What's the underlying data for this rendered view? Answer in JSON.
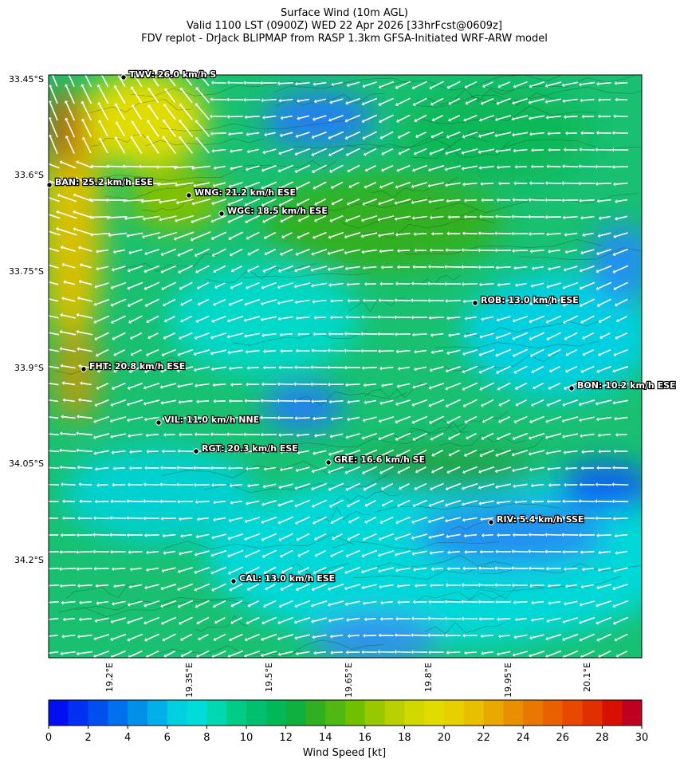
{
  "header": {
    "title": "Surface Wind (10m AGL)",
    "subtitle": "Valid 1100 LST (0900Z) WED 22 Apr 2026 [33hrFcst@0609z]",
    "credit": "FDV replot - DrJack BLIPMAP from RASP 1.3km GFSA-Initiated WRF-ARW model"
  },
  "map": {
    "lat_labels": [
      "33.45°S",
      "33.6°S",
      "33.75°S",
      "33.9°S",
      "34.05°S",
      "34.2°S"
    ],
    "lon_labels": [
      "19.2°E",
      "19.35°E",
      "19.5°E",
      "19.65°E",
      "19.8°E",
      "19.95°E",
      "20.1°E"
    ],
    "stations": [
      "TWV: 26.0 km/h S",
      "BAN: 25.2 km/h ESE",
      "WNG: 21.2 km/h ESE",
      "WGC: 18.5 km/h ESE",
      "ROB: 13.0 km/h ESE",
      "FHT: 20.8 km/h ESE",
      "BON: 10.2 km/h ESE",
      "VIL: 11.0 km/h NNE",
      "RGT: 20.3 km/h ESE",
      "GRE: 16.6 km/h SE",
      "RIV: 5.4 km/h SSE",
      "CAL: 13.0 km/h ESE"
    ]
  },
  "colorbar": {
    "label": "Wind Speed [kt]",
    "lim": [
      0,
      30
    ],
    "ticks": [
      0,
      2,
      4,
      6,
      8,
      10,
      12,
      14,
      16,
      18,
      20,
      22,
      24,
      26,
      28,
      30
    ],
    "colors": [
      "#0010f0",
      "#0030f0",
      "#0050f0",
      "#0070ee",
      "#0090e8",
      "#00b0e8",
      "#00d0e0",
      "#00dcd8",
      "#00d8b0",
      "#00cc88",
      "#00c070",
      "#00b858",
      "#10b040",
      "#30b020",
      "#50b810",
      "#70c000",
      "#98c800",
      "#b8d000",
      "#d0d800",
      "#e0dc00",
      "#e8d000",
      "#e8c000",
      "#e8a800",
      "#e89000",
      "#e87800",
      "#e86000",
      "#e84800",
      "#e03000",
      "#d81000",
      "#c00020"
    ]
  }
}
